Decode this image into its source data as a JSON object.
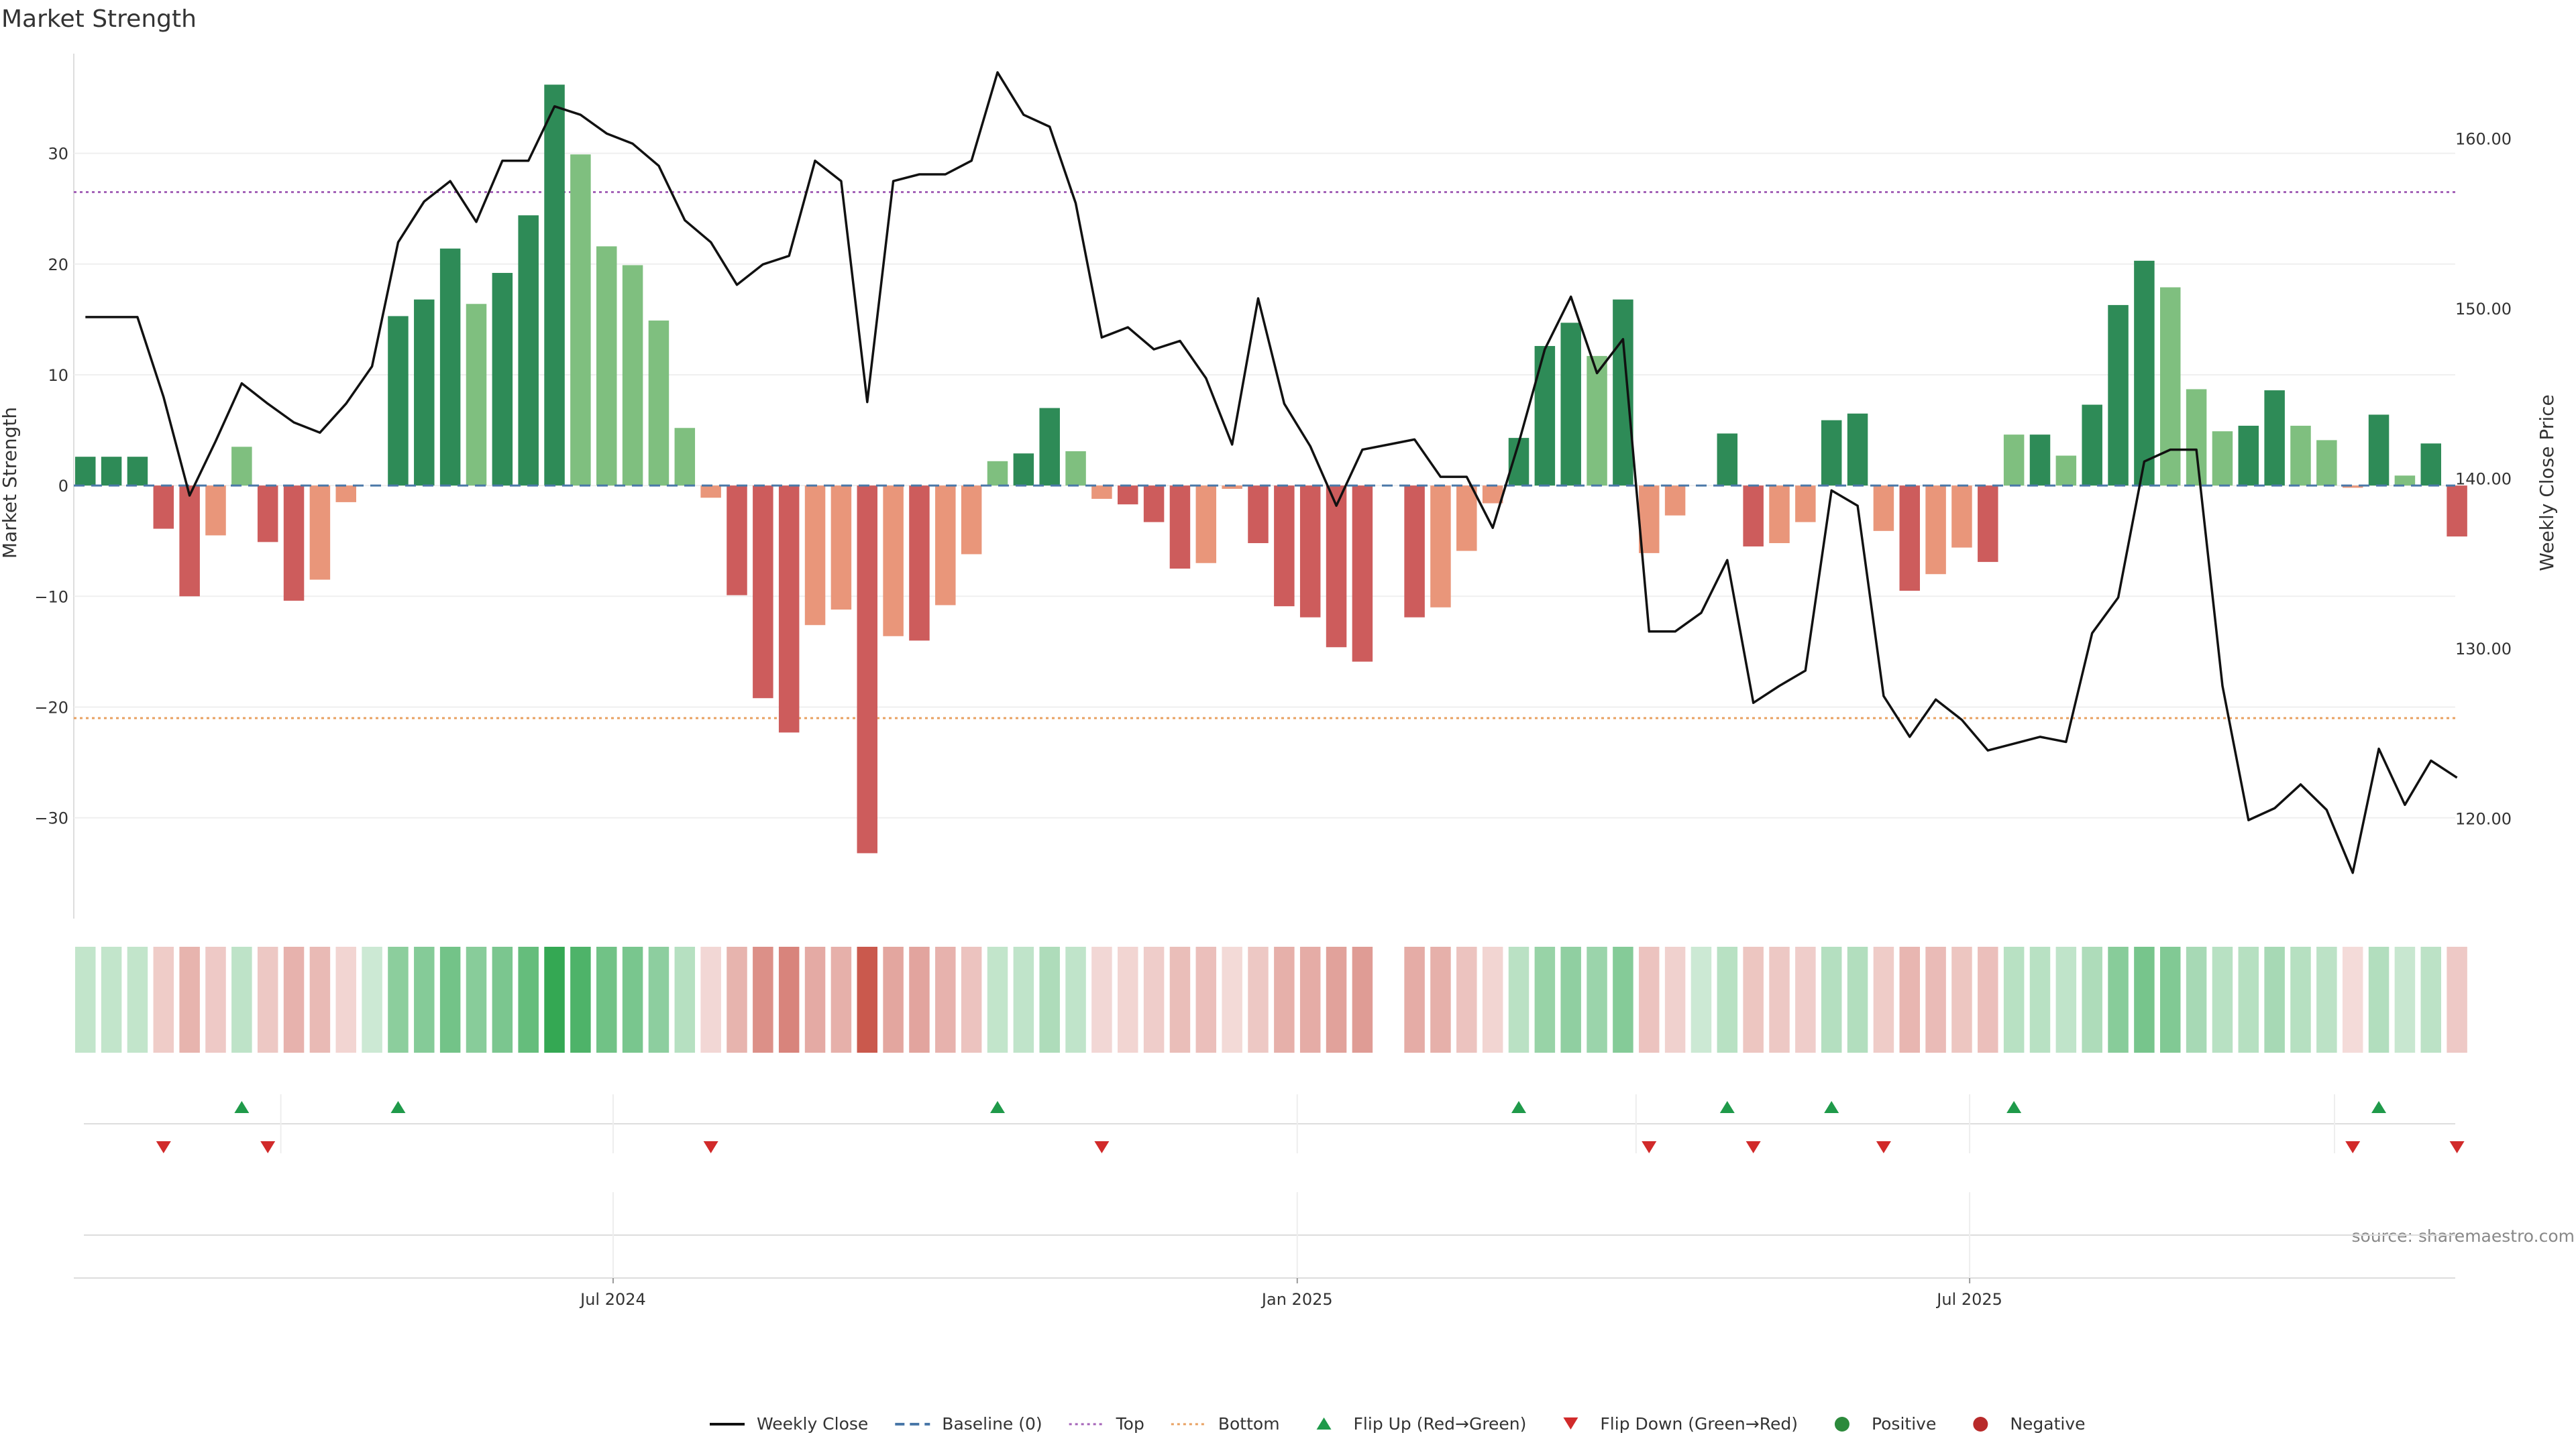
{
  "chart_data": {
    "type": "bar",
    "title": "Market Strength",
    "ylabel_left": "Market Strength",
    "ylabel_right": "Weekly Close Price",
    "ylim_left": [
      -38.5,
      39
    ],
    "ylim_right": [
      114.5,
      165
    ],
    "yticks_left": [
      30,
      20,
      10,
      0,
      -10,
      -20,
      -30
    ],
    "ytick_labels_left": [
      "30",
      "20",
      "10",
      "0",
      "−10",
      "−20",
      "−30"
    ],
    "yticks_right": [
      160,
      150,
      140,
      130,
      120
    ],
    "ytick_labels_right": [
      "160.00",
      "150.00",
      "140.00",
      "130.00",
      "120.00"
    ],
    "x_ticks": [
      {
        "index": 20.25,
        "label": "Jul 2024"
      },
      {
        "index": 46.5,
        "label": "Jan 2025"
      },
      {
        "index": 72.3,
        "label": "Jul 2025"
      }
    ],
    "reference_lines": {
      "baseline": 0,
      "top": 26.5,
      "bottom": -21
    },
    "grid": true,
    "source": "source: sharemaestro.com",
    "legend_position": "bottom-center",
    "legend": [
      {
        "label": "Weekly Close",
        "kind": "line-solid",
        "color": "#111111"
      },
      {
        "label": "Baseline (0)",
        "kind": "line-dashed",
        "color": "#4a78a8"
      },
      {
        "label": "Top",
        "kind": "line-dotted",
        "color": "#a463b8"
      },
      {
        "label": "Bottom",
        "kind": "line-dotted",
        "color": "#e8a060"
      },
      {
        "label": "Flip Up (Red→Green)",
        "kind": "triangle-up",
        "color": "#1f9a4a"
      },
      {
        "label": "Flip Down (Green→Red)",
        "kind": "triangle-down",
        "color": "#d12a2a"
      },
      {
        "label": "Positive",
        "kind": "dot",
        "color": "#2c8a3c"
      },
      {
        "label": "Negative",
        "kind": "dot",
        "color": "#b82a2a"
      }
    ],
    "colors": {
      "pos_strong": "#2e8b57",
      "pos_weak": "#7fbf7f",
      "neg_strong": "#cd5c5c",
      "neg_weak": "#e9967a",
      "price_line": "#111111",
      "baseline": "#4a78a8",
      "top": "#a463b8",
      "bottom": "#e8a060"
    },
    "strength": [
      2.6,
      2.6,
      2.6,
      -3.9,
      -10.0,
      -4.5,
      3.5,
      -5.1,
      -10.4,
      -8.5,
      -1.5,
      0,
      15.3,
      16.8,
      21.4,
      16.4,
      19.2,
      24.4,
      36.2,
      29.9,
      21.6,
      19.9,
      14.9,
      5.2,
      -1.1,
      -9.9,
      -19.2,
      -22.3,
      -12.6,
      -11.2,
      -33.2,
      -13.6,
      -14.0,
      -10.8,
      -6.2,
      2.2,
      2.9,
      7.0,
      3.1,
      -1.2,
      -1.7,
      -3.3,
      -7.5,
      -7.0,
      -0.3,
      -5.2,
      -10.9,
      -11.9,
      -14.6,
      -15.9,
      0,
      -11.9,
      -11.0,
      -5.9,
      -1.6,
      4.3,
      12.6,
      14.7,
      11.7,
      16.8,
      -6.1,
      -2.7,
      0,
      4.7,
      -5.5,
      -5.2,
      -3.3,
      5.9,
      6.5,
      -4.1,
      -9.5,
      -8.0,
      -5.6,
      -6.9,
      4.6,
      4.6,
      2.7,
      7.3,
      16.3,
      20.3,
      17.9,
      8.7,
      4.9,
      5.4,
      8.6,
      5.4,
      4.1,
      -0.2,
      6.4,
      0.9,
      3.8,
      -4.6
    ],
    "close": [
      149.5,
      149.5,
      149.5,
      144.8,
      139.0,
      142.2,
      145.6,
      144.4,
      143.3,
      142.7,
      144.4,
      146.6,
      153.9,
      156.3,
      157.5,
      155.1,
      158.7,
      158.7,
      161.9,
      161.4,
      160.3,
      159.7,
      158.4,
      155.2,
      153.9,
      151.4,
      152.6,
      153.1,
      158.7,
      157.5,
      144.5,
      157.5,
      157.9,
      157.9,
      158.7,
      163.9,
      161.4,
      160.7,
      156.2,
      148.3,
      148.9,
      147.6,
      148.1,
      145.9,
      142.0,
      150.6,
      144.4,
      141.9,
      138.4,
      141.7,
      142.0,
      142.3,
      140.1,
      140.1,
      137.1,
      142.1,
      147.6,
      150.7,
      146.2,
      148.2,
      131.0,
      131.0,
      132.1,
      135.2,
      126.8,
      127.8,
      128.7,
      139.3,
      138.4,
      127.2,
      124.8,
      127.0,
      125.8,
      124.0,
      124.4,
      124.8,
      124.5,
      130.9,
      133.0,
      141.0,
      141.7,
      141.7,
      127.8,
      119.9,
      120.6,
      122.0,
      120.5,
      116.8,
      124.1,
      120.8,
      123.4,
      122.4
    ],
    "heat_strip": {
      "missing_indices": [
        50
      ]
    },
    "flip_up_indices": [
      6,
      12,
      35,
      55,
      63,
      67,
      74,
      88
    ],
    "flip_down_indices": [
      3,
      7,
      24,
      39,
      60,
      64,
      69,
      87,
      91
    ]
  }
}
